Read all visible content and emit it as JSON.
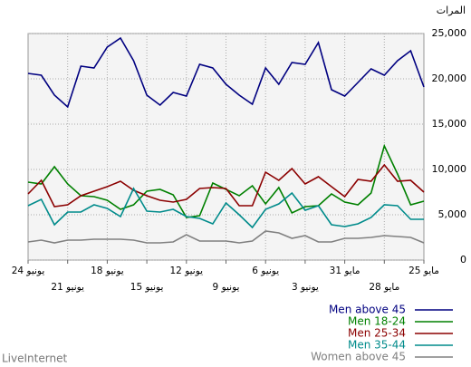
{
  "chart_data": {
    "type": "line",
    "y_label": "المرات",
    "watermark": "LiveInternet",
    "categories": [
      "24 يونيو",
      null,
      null,
      "21 يونيو",
      null,
      null,
      "18 يونيو",
      null,
      null,
      "15 يونيو",
      null,
      null,
      "12 يونيو",
      null,
      null,
      "9 يونيو",
      null,
      null,
      "6 يونيو",
      null,
      null,
      "3 يونيو",
      null,
      null,
      "31 مايو",
      null,
      null,
      "28 مايو",
      null,
      null,
      "25 مايو"
    ],
    "series": [
      {
        "name": "Men above 45",
        "color": "#000080",
        "values": [
          20600,
          20400,
          18200,
          16900,
          21400,
          21200,
          23500,
          24500,
          22000,
          18200,
          17100,
          18500,
          18100,
          21600,
          21200,
          19400,
          18200,
          17200,
          21200,
          19400,
          21800,
          21600,
          24000,
          18800,
          18100,
          19600,
          21100,
          20400,
          22000,
          23100,
          19100
        ]
      },
      {
        "name": "Men 18-24",
        "color": "#008000",
        "values": [
          8600,
          8400,
          10300,
          8400,
          7100,
          7000,
          6600,
          5600,
          6100,
          7600,
          7800,
          7200,
          4700,
          4900,
          8500,
          7800,
          7100,
          8200,
          6200,
          8000,
          5200,
          5900,
          6000,
          7300,
          6400,
          6100,
          7400,
          12600,
          9500,
          6100,
          6500
        ]
      },
      {
        "name": "Men 25-34",
        "color": "#8b0000",
        "values": [
          7300,
          8800,
          5900,
          6100,
          7100,
          7600,
          8100,
          8700,
          7700,
          7100,
          6600,
          6400,
          6700,
          7900,
          8000,
          7900,
          6000,
          6000,
          9700,
          8800,
          10100,
          8400,
          9200,
          8100,
          7000,
          8900,
          8700,
          10500,
          8700,
          8800,
          7500
        ]
      },
      {
        "name": "Men 35-44",
        "color": "#008b8b",
        "values": [
          6000,
          6700,
          3900,
          5300,
          5300,
          6100,
          5700,
          4800,
          7900,
          5400,
          5300,
          5600,
          4800,
          4600,
          4000,
          6300,
          5000,
          3600,
          5600,
          6200,
          7400,
          5500,
          6000,
          3900,
          3700,
          4000,
          4700,
          6100,
          6000,
          4500,
          4500
        ]
      },
      {
        "name": "Women above 45",
        "color": "#808080",
        "values": [
          2000,
          2200,
          1900,
          2200,
          2200,
          2300,
          2300,
          2300,
          2200,
          1900,
          1900,
          2000,
          2800,
          2100,
          2100,
          2100,
          1900,
          2100,
          3200,
          3000,
          2400,
          2700,
          2000,
          2000,
          2400,
          2400,
          2500,
          2700,
          2600,
          2500,
          1900
        ]
      }
    ],
    "ylim": [
      0,
      25000
    ],
    "yticks": [
      0,
      {
        "value": 5000,
        "label": "5,000"
      },
      {
        "value": 10000,
        "label": "10,000"
      },
      {
        "value": 15000,
        "label": "15,000"
      },
      {
        "value": 20000,
        "label": "20,000"
      },
      {
        "value": 25000,
        "label": "25,000"
      }
    ],
    "grid": true,
    "legend": "bottom-right"
  }
}
